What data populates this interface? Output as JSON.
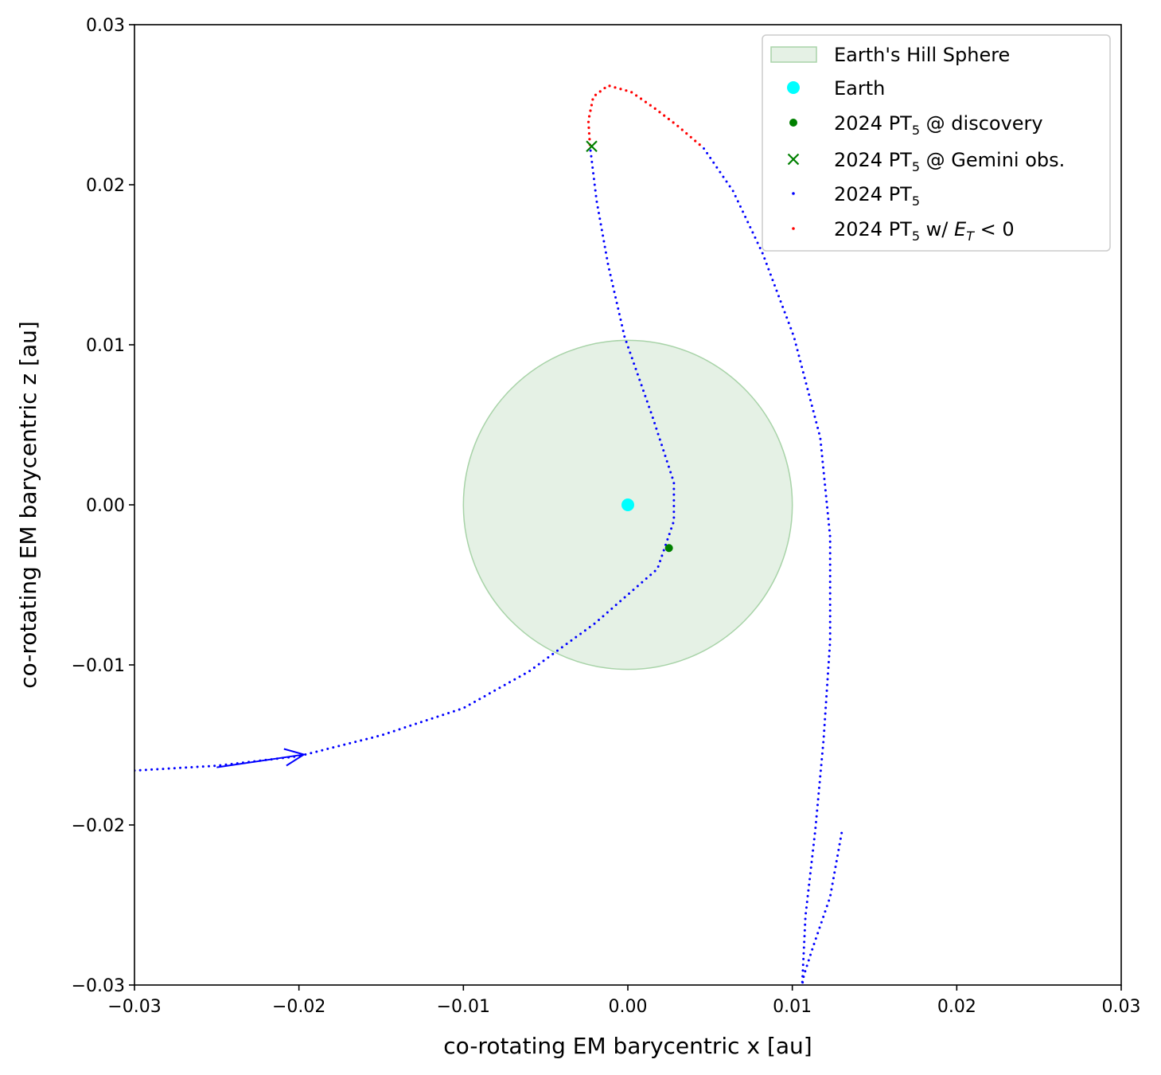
{
  "chart_data": {
    "type": "scatter",
    "title": "",
    "xlabel": "co-rotating EM barycentric x [au]",
    "ylabel": "co-rotating EM barycentric z [au]",
    "xlim": [
      -0.03,
      0.03
    ],
    "ylim": [
      -0.03,
      0.03
    ],
    "xticks": [
      -0.03,
      -0.02,
      -0.01,
      0.0,
      0.01,
      0.02,
      0.03
    ],
    "yticks": [
      -0.03,
      -0.02,
      -0.01,
      0.0,
      0.01,
      0.02,
      0.03
    ],
    "xtick_labels": [
      "−0.03",
      "−0.02",
      "−0.01",
      "0.00",
      "0.01",
      "0.02",
      "0.03"
    ],
    "ytick_labels": [
      "−0.03",
      "−0.02",
      "−0.01",
      "0.00",
      "0.01",
      "0.02",
      "0.03"
    ],
    "grid": false,
    "legend_position": "top-right",
    "hill_sphere": {
      "center": [
        0.0,
        0.0
      ],
      "radius": 0.01,
      "color": "#cfe6cf",
      "edge_color": "#a8d3a8"
    },
    "earth": {
      "x": 0.0,
      "z": 0.0,
      "color": "#00ffff"
    },
    "discovery": {
      "x": 0.0025,
      "z": -0.0027,
      "color": "#008000"
    },
    "gemini_obs": {
      "x": -0.0022,
      "z": 0.0224,
      "color": "#008000"
    },
    "direction_arrow": {
      "from": [
        -0.025,
        -0.0164
      ],
      "to": [
        -0.0197,
        -0.0156
      ],
      "color": "#0000ff"
    },
    "trajectory_color": "#0000ff",
    "negative_energy_color": "#ff0000",
    "trajectory_nodes": [
      [
        -0.03,
        -0.0166
      ],
      [
        -0.025,
        -0.0163
      ],
      [
        -0.02,
        -0.0157
      ],
      [
        -0.015,
        -0.0144
      ],
      [
        -0.01,
        -0.0127
      ],
      [
        -0.006,
        -0.0104
      ],
      [
        -0.002,
        -0.0074
      ],
      [
        0.0018,
        -0.004
      ],
      [
        0.0028,
        -0.001
      ],
      [
        0.0028,
        0.0014
      ],
      [
        0.0015,
        0.0055
      ],
      [
        -0.0002,
        0.0105
      ],
      [
        -0.0012,
        0.015
      ],
      [
        -0.0019,
        0.019
      ],
      [
        -0.0023,
        0.0224
      ],
      [
        -0.0024,
        0.024
      ],
      [
        -0.0021,
        0.0255
      ],
      [
        -0.0012,
        0.0262
      ],
      [
        0.0002,
        0.0258
      ],
      [
        0.0016,
        0.0248
      ],
      [
        0.003,
        0.0237
      ],
      [
        0.0046,
        0.0223
      ],
      [
        0.0064,
        0.0196
      ],
      [
        0.0082,
        0.0157
      ],
      [
        0.0101,
        0.0105
      ],
      [
        0.0117,
        0.0042
      ],
      [
        0.0123,
        -0.002
      ],
      [
        0.0123,
        -0.0085
      ],
      [
        0.0119,
        -0.0147
      ],
      [
        0.0114,
        -0.0203
      ],
      [
        0.0108,
        -0.0257
      ],
      [
        0.0106,
        -0.03
      ],
      [
        0.0107,
        -0.0294
      ],
      [
        0.0113,
        -0.0275
      ],
      [
        0.0123,
        -0.0245
      ],
      [
        0.013,
        -0.0205
      ]
    ],
    "negative_energy_range_z": [
      0.0224,
      0.0237
    ],
    "legend": [
      {
        "label": "Earth's Hill Sphere",
        "marker": "patch"
      },
      {
        "label": "Earth",
        "marker": "large-dot"
      },
      {
        "label_pre": "2024 PT",
        "label_sub": "5",
        "label_post": " @ discovery",
        "marker": "dot"
      },
      {
        "label_pre": "2024 PT",
        "label_sub": "5",
        "label_post": " @ Gemini obs.",
        "marker": "x"
      },
      {
        "label_pre": "2024 PT",
        "label_sub": "5",
        "label_post": "",
        "marker": "small-dot"
      },
      {
        "label_pre": "2024 PT",
        "label_sub": "5",
        "label_post": " w/ ",
        "label_math": "E",
        "label_math_sub": "T",
        "label_math_post": " < 0",
        "marker": "red-dot"
      }
    ]
  }
}
